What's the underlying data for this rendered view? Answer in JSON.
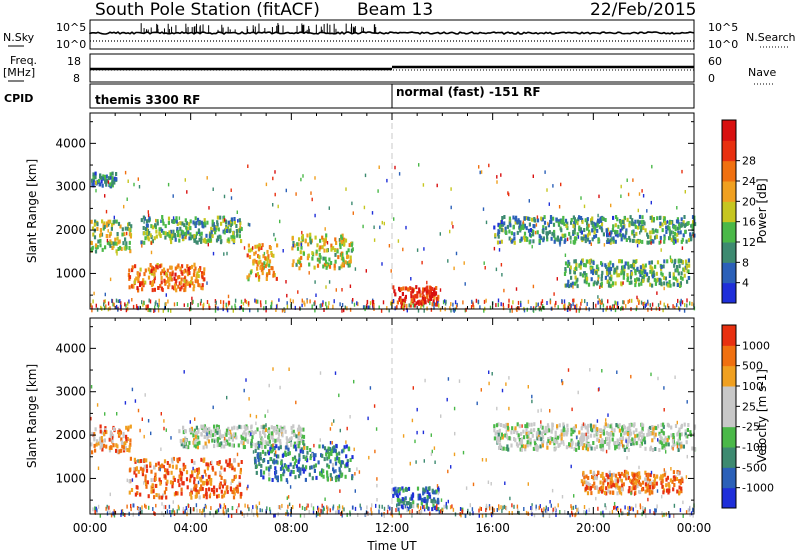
{
  "header": {
    "station": "South Pole Station (fitACF)",
    "beam": "Beam 13",
    "date": "22/Feb/2015"
  },
  "noise_panel": {
    "left_label": "N.Sky",
    "right_label": "N.Search",
    "tick_top": "10^5",
    "tick_bottom": "10^0"
  },
  "freq_panel": {
    "left_label_1": "Freq.",
    "left_label_2": "[MHz]",
    "left_tick_top": "18",
    "left_tick_bottom": "8",
    "right_label": "Nave",
    "right_tick_top": "60",
    "right_tick_bottom": "0"
  },
  "cpid_panel": {
    "label": "CPID",
    "mode_1": "themis 3300 RF",
    "mode_2": "normal (fast) -151 RF"
  },
  "chart_data": [
    {
      "type": "heatmap",
      "ylabel": "Slant Range [km]",
      "x_range_hours": [
        0,
        24
      ],
      "ylim_km": [
        180,
        4700
      ],
      "y_ticks": [
        "1000",
        "2000",
        "3000",
        "4000"
      ],
      "colorbar": {
        "label": "Power [dB]",
        "ticks": [
          "4",
          "8",
          "12",
          "16",
          "20",
          "24",
          "28"
        ],
        "colors": [
          "#1f2fd9",
          "#2b60b8",
          "#3d8a70",
          "#4ab848",
          "#c6c620",
          "#f0a020",
          "#f07010",
          "#e83010",
          "#d81010"
        ]
      },
      "bands": [
        {
          "from_h": 0.0,
          "to_h": 1.6,
          "center_km": 1900,
          "width_km": 350,
          "level": 0.45
        },
        {
          "from_h": 0.0,
          "to_h": 1.0,
          "center_km": 3200,
          "width_km": 150,
          "level": 0.25
        },
        {
          "from_h": 1.5,
          "to_h": 4.5,
          "center_km": 950,
          "width_km": 300,
          "level": 0.7
        },
        {
          "from_h": 2.0,
          "to_h": 6.0,
          "center_km": 2050,
          "width_km": 300,
          "level": 0.35
        },
        {
          "from_h": 6.2,
          "to_h": 7.4,
          "center_km": 1300,
          "width_km": 400,
          "level": 0.6
        },
        {
          "from_h": 8.0,
          "to_h": 10.4,
          "center_km": 1550,
          "width_km": 400,
          "level": 0.5
        },
        {
          "from_h": 12.0,
          "to_h": 13.8,
          "center_km": 520,
          "width_km": 220,
          "level": 0.85
        },
        {
          "from_h": 16.0,
          "to_h": 24.0,
          "center_km": 2050,
          "width_km": 300,
          "level": 0.3
        },
        {
          "from_h": 18.8,
          "to_h": 23.8,
          "center_km": 1050,
          "width_km": 300,
          "level": 0.35
        }
      ]
    },
    {
      "type": "heatmap",
      "ylabel": "Slant Range [km]",
      "x_range_hours": [
        0,
        24
      ],
      "ylim_km": [
        180,
        4700
      ],
      "y_ticks": [
        "1000",
        "2000",
        "3000",
        "4000"
      ],
      "x_ticks": [
        "00:00",
        "04:00",
        "08:00",
        "12:00",
        "16:00",
        "20:00",
        "00:00"
      ],
      "xlabel": "Time UT",
      "colorbar": {
        "label": "Velocity [m s-1]",
        "ticks": [
          "1000",
          "500",
          "100",
          "25",
          "-25",
          "-100",
          "-500",
          "-1000"
        ],
        "colors": [
          "#1f2fd9",
          "#2b60b8",
          "#3d8a70",
          "#4ab848",
          "#c8c8c8",
          "#c8c8c8",
          "#f0a020",
          "#f07010",
          "#e83010"
        ]
      },
      "bands": [
        {
          "from_h": 0.0,
          "to_h": 1.6,
          "center_km": 1950,
          "width_km": 300,
          "level": 0.75
        },
        {
          "from_h": 1.5,
          "to_h": 6.0,
          "center_km": 1050,
          "width_km": 450,
          "level": 0.85
        },
        {
          "from_h": 3.5,
          "to_h": 8.5,
          "center_km": 2000,
          "width_km": 250,
          "level": 0.5
        },
        {
          "from_h": 6.5,
          "to_h": 10.4,
          "center_km": 1400,
          "width_km": 400,
          "level": 0.25
        },
        {
          "from_h": 12.0,
          "to_h": 13.8,
          "center_km": 580,
          "width_km": 250,
          "level": 0.2
        },
        {
          "from_h": 16.0,
          "to_h": 24.0,
          "center_km": 2000,
          "width_km": 300,
          "level": 0.5
        },
        {
          "from_h": 19.5,
          "to_h": 23.5,
          "center_km": 950,
          "width_km": 250,
          "level": 0.8
        }
      ]
    }
  ]
}
